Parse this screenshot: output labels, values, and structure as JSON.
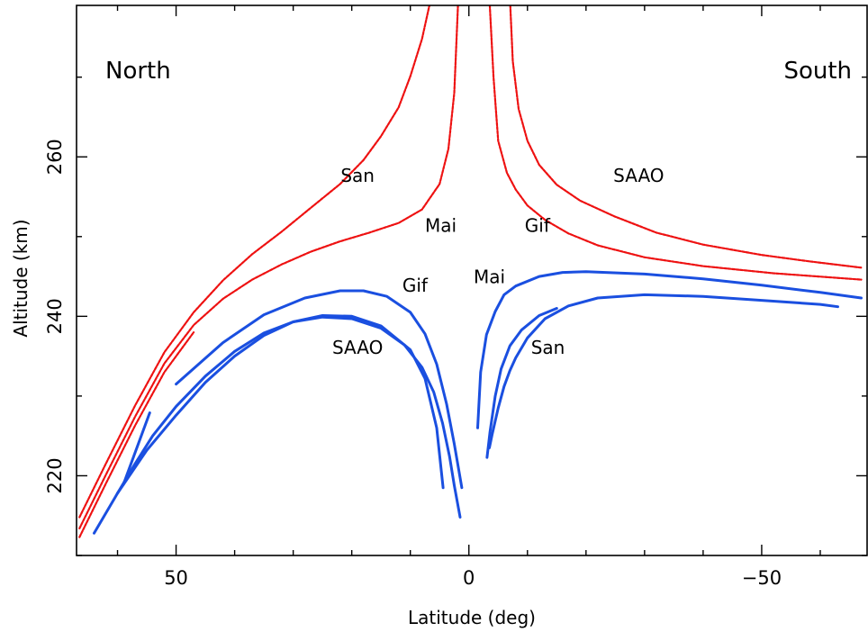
{
  "chart_data": {
    "type": "line",
    "title": "",
    "xlabel": "Latitude (deg)",
    "ylabel": "Altitude (km)",
    "xlim": [
      67,
      -68
    ],
    "ylim": [
      210,
      279
    ],
    "x_reversed": true,
    "x_ticks": [
      {
        "value": 50,
        "label": "50"
      },
      {
        "value": 0,
        "label": "0"
      },
      {
        "value": -50,
        "label": "−50"
      }
    ],
    "y_ticks": [
      {
        "value": 220,
        "label": "220"
      },
      {
        "value": 240,
        "label": "240"
      },
      {
        "value": 260,
        "label": "260"
      }
    ],
    "x_minor_step": 10,
    "y_minor_step": 10,
    "corner_labels": {
      "north": "North",
      "south": "South"
    },
    "colors": {
      "red": "#ee1111",
      "blue": "#1a4fe0"
    },
    "series": [
      {
        "name": "San",
        "group": "red-north-outer",
        "color": "#ee1111",
        "x": [
          66.5,
          62,
          57,
          52,
          47,
          42,
          37,
          32,
          27,
          22,
          18,
          15,
          12,
          10,
          8,
          6.8,
          5.5
        ],
        "y": [
          214.8,
          221.5,
          228.8,
          235.5,
          240.5,
          244.5,
          247.8,
          250.6,
          253.6,
          256.6,
          259.6,
          262.6,
          266.2,
          270.1,
          274.8,
          278.8,
          282
        ]
      },
      {
        "name": "",
        "group": "red-north-outer",
        "color": "#ee1111",
        "x": [
          66.5,
          62,
          57,
          52,
          47
        ],
        "y": [
          212.3,
          219,
          226.3,
          233,
          238
        ]
      },
      {
        "name": "Mai",
        "group": "red-north-inner",
        "color": "#ee1111",
        "x": [
          66.5,
          62,
          57,
          52,
          47,
          42,
          37,
          32,
          27,
          22,
          17,
          12,
          8,
          5,
          3.5,
          2.5,
          1.8
        ],
        "y": [
          213.4,
          220.1,
          227.4,
          234.1,
          238.9,
          242.2,
          244.6,
          246.5,
          248.1,
          249.4,
          250.5,
          251.7,
          253.4,
          256.6,
          261,
          268,
          280
        ]
      },
      {
        "name": "Gif",
        "group": "red-south-inner",
        "color": "#ee1111",
        "x": [
          -3.5,
          -4.2,
          -5,
          -6.5,
          -8,
          -10,
          -13,
          -17,
          -22,
          -30,
          -40,
          -52,
          -67
        ],
        "y": [
          280,
          270,
          262,
          258,
          255.9,
          253.9,
          252.1,
          250.4,
          248.9,
          247.4,
          246.3,
          245.4,
          244.6
        ]
      },
      {
        "name": "SAAO",
        "group": "red-south-outer",
        "color": "#ee1111",
        "x": [
          -7,
          -7.5,
          -8.5,
          -10,
          -12,
          -15,
          -19,
          -25,
          -32,
          -40,
          -50,
          -58,
          -67
        ],
        "y": [
          280,
          272,
          266,
          262,
          259,
          256.5,
          254.5,
          252.5,
          250.5,
          249,
          247.7,
          246.9,
          246.1
        ]
      },
      {
        "name": "Gif",
        "group": "blue-north",
        "color": "#1a4fe0",
        "x": [
          50,
          42,
          35,
          28,
          22,
          18,
          14,
          10,
          7.5,
          5.5,
          3.8,
          2.5,
          1.2
        ],
        "y": [
          231.5,
          236.7,
          240.2,
          242.3,
          243.2,
          243.2,
          242.5,
          240.5,
          237.8,
          234,
          229,
          224,
          218.5
        ]
      },
      {
        "name": "SAAO",
        "group": "blue-north",
        "color": "#1a4fe0",
        "x": [
          64,
          60,
          55,
          50,
          45,
          40,
          35,
          30,
          25,
          20,
          15,
          10,
          7.5,
          5.5,
          4.4
        ],
        "y": [
          212.8,
          217.8,
          223.2,
          227.6,
          231.7,
          235,
          237.6,
          239.3,
          240.1,
          240,
          238.8,
          235.8,
          232.2,
          226,
          218.5
        ]
      },
      {
        "name": "",
        "group": "blue-north",
        "color": "#1a4fe0",
        "x": [
          60,
          57,
          54,
          50,
          45,
          40,
          35,
          30,
          25,
          20,
          15,
          11,
          8,
          6,
          4.5,
          3.3,
          2.5,
          1.5
        ],
        "y": [
          217.8,
          221.5,
          225,
          228.7,
          232.5,
          235.6,
          237.9,
          239.3,
          239.9,
          239.7,
          238.5,
          236.4,
          233.6,
          230.5,
          226.6,
          222.4,
          218.8,
          214.8
        ]
      },
      {
        "name": "",
        "group": "blue-north",
        "color": "#1a4fe0",
        "x": [
          59,
          54.5
        ],
        "y": [
          218.9,
          227.9
        ]
      },
      {
        "name": "Mai",
        "group": "blue-south",
        "color": "#1a4fe0",
        "x": [
          -1.5,
          -2,
          -3,
          -4.5,
          -6,
          -8,
          -12,
          -16,
          -20,
          -30,
          -40,
          -50,
          -60,
          -67
        ],
        "y": [
          226,
          233,
          237.7,
          240.6,
          242.7,
          243.8,
          245,
          245.5,
          245.6,
          245.3,
          244.7,
          243.9,
          243,
          242.3
        ]
      },
      {
        "name": "San",
        "group": "blue-south",
        "color": "#1a4fe0",
        "x": [
          -3.5,
          -4,
          -5,
          -6,
          -7,
          -8,
          -10,
          -13,
          -17,
          -22,
          -30,
          -40,
          -50,
          -60,
          -63
        ],
        "y": [
          223.5,
          225.3,
          228.5,
          231.2,
          233.2,
          234.8,
          237.3,
          239.7,
          241.3,
          242.3,
          242.7,
          242.5,
          242,
          241.5,
          241.2
        ]
      },
      {
        "name": "",
        "group": "blue-south",
        "color": "#1a4fe0",
        "x": [
          -3.1,
          -3.6,
          -4.5,
          -5.5,
          -7,
          -9,
          -12,
          -15
        ],
        "y": [
          222.3,
          225.5,
          230,
          233.4,
          236.3,
          238.3,
          240.1,
          241
        ]
      }
    ],
    "annotations": [
      {
        "text": "San",
        "x": 19,
        "y": 257.5
      },
      {
        "text": "Mai",
        "x": 4.8,
        "y": 251.2
      },
      {
        "text": "Gif",
        "x": -11.7,
        "y": 251.2
      },
      {
        "text": "SAAO",
        "x": -29,
        "y": 257.5
      },
      {
        "text": "Gif",
        "x": 9.2,
        "y": 243.7
      },
      {
        "text": "Mai",
        "x": -3.5,
        "y": 244.8
      },
      {
        "text": "SAAO",
        "x": 19,
        "y": 235.9
      },
      {
        "text": "San",
        "x": -13.5,
        "y": 235.9
      }
    ],
    "grid": false,
    "legend": "none"
  }
}
